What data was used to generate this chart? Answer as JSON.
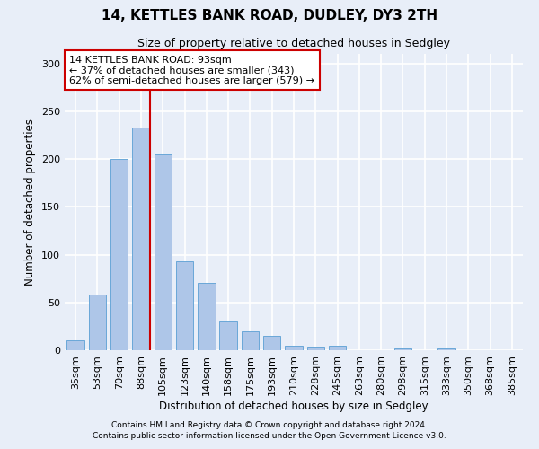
{
  "title1": "14, KETTLES BANK ROAD, DUDLEY, DY3 2TH",
  "title2": "Size of property relative to detached houses in Sedgley",
  "xlabel": "Distribution of detached houses by size in Sedgley",
  "ylabel": "Number of detached properties",
  "categories": [
    "35sqm",
    "53sqm",
    "70sqm",
    "88sqm",
    "105sqm",
    "123sqm",
    "140sqm",
    "158sqm",
    "175sqm",
    "193sqm",
    "210sqm",
    "228sqm",
    "245sqm",
    "263sqm",
    "280sqm",
    "298sqm",
    "315sqm",
    "333sqm",
    "350sqm",
    "368sqm",
    "385sqm"
  ],
  "values": [
    10,
    58,
    200,
    233,
    205,
    93,
    70,
    30,
    20,
    15,
    5,
    4,
    5,
    0,
    0,
    2,
    0,
    2,
    0,
    0,
    0
  ],
  "bar_color": "#aec6e8",
  "bar_edge_color": "#5a9fd4",
  "vline_color": "#cc0000",
  "annotation_text": "14 KETTLES BANK ROAD: 93sqm\n← 37% of detached houses are smaller (343)\n62% of semi-detached houses are larger (579) →",
  "annotation_box_color": "#ffffff",
  "annotation_box_edge": "#cc0000",
  "background_color": "#e8eef8",
  "grid_color": "#ffffff",
  "ylim": [
    0,
    310
  ],
  "yticks": [
    0,
    50,
    100,
    150,
    200,
    250,
    300
  ],
  "footnote1": "Contains HM Land Registry data © Crown copyright and database right 2024.",
  "footnote2": "Contains public sector information licensed under the Open Government Licence v3.0."
}
